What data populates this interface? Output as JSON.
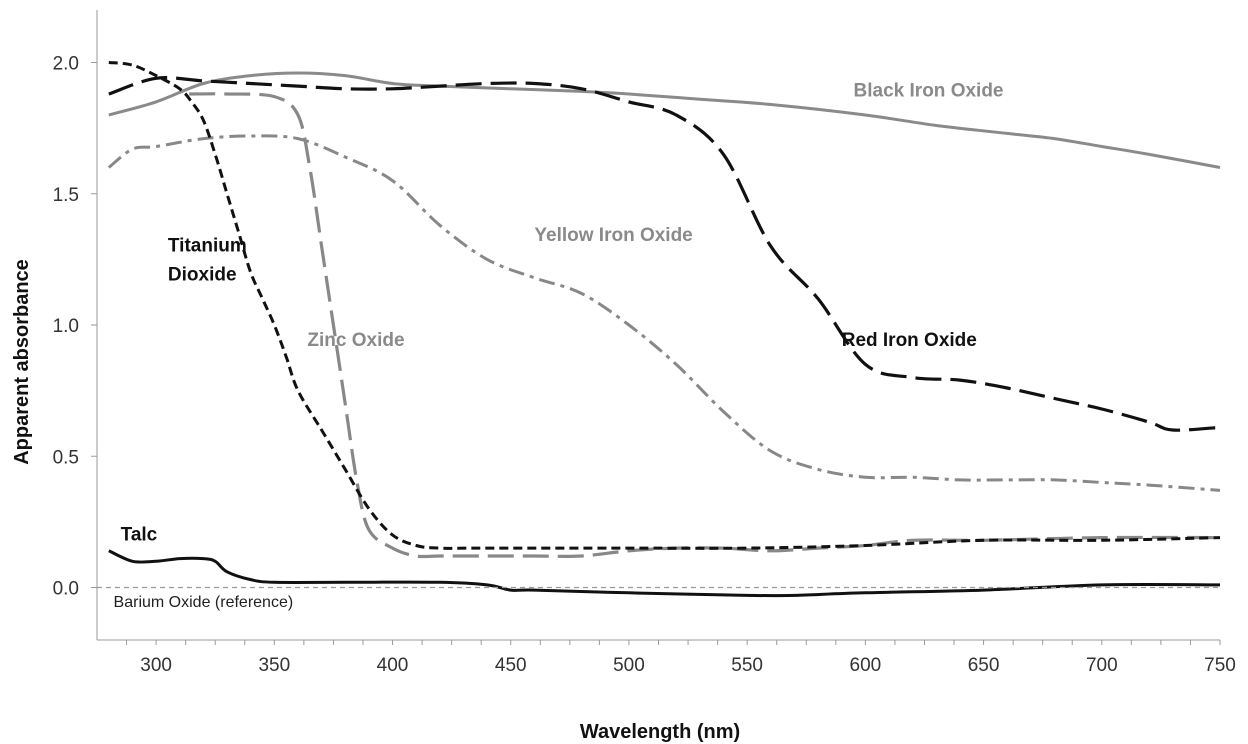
{
  "chart_data": {
    "type": "line",
    "xlabel": "Wavelength (nm)",
    "ylabel": "Apparent absorbance",
    "xlim": [
      275,
      750
    ],
    "ylim": [
      -0.2,
      2.2
    ],
    "xticks": [
      {
        "value": 300,
        "label": "300"
      },
      {
        "value": 350,
        "label": "350"
      },
      {
        "value": 400,
        "label": "400"
      },
      {
        "value": 450,
        "label": "450"
      },
      {
        "value": 500,
        "label": "500"
      },
      {
        "value": 550,
        "label": "550"
      },
      {
        "value": 600,
        "label": "600"
      },
      {
        "value": 650,
        "label": "650"
      },
      {
        "value": 700,
        "label": "700"
      },
      {
        "value": 750,
        "label": "750"
      }
    ],
    "yticks": [
      {
        "value": 0.0,
        "label": "0.0"
      },
      {
        "value": 0.5,
        "label": "0.5"
      },
      {
        "value": 1.0,
        "label": "1.0"
      },
      {
        "value": 1.5,
        "label": "1.5"
      },
      {
        "value": 2.0,
        "label": "2.0"
      }
    ],
    "grid": false,
    "legend": "none",
    "series": [
      {
        "name": "Black Iron Oxide",
        "color": "#8a8a8a",
        "dash": "solid",
        "label_anchor": [
          595,
          1.87
        ],
        "x": [
          280,
          300,
          320,
          340,
          360,
          380,
          400,
          420,
          450,
          480,
          500,
          530,
          560,
          600,
          630,
          660,
          680,
          700,
          720,
          750
        ],
        "y": [
          1.8,
          1.85,
          1.92,
          1.95,
          1.96,
          1.95,
          1.92,
          1.91,
          1.9,
          1.89,
          1.88,
          1.86,
          1.84,
          1.8,
          1.76,
          1.73,
          1.71,
          1.68,
          1.65,
          1.6
        ]
      },
      {
        "name": "Red Iron Oxide",
        "color": "#111111",
        "dash": "long",
        "label_anchor": [
          590,
          0.92
        ],
        "x": [
          280,
          300,
          320,
          340,
          360,
          380,
          400,
          420,
          440,
          460,
          480,
          500,
          520,
          540,
          560,
          580,
          600,
          620,
          640,
          660,
          680,
          700,
          720,
          730,
          750
        ],
        "y": [
          1.88,
          1.94,
          1.93,
          1.92,
          1.91,
          1.9,
          1.9,
          1.91,
          1.92,
          1.92,
          1.9,
          1.85,
          1.8,
          1.65,
          1.3,
          1.1,
          0.85,
          0.8,
          0.79,
          0.76,
          0.72,
          0.68,
          0.63,
          0.6,
          0.61
        ]
      },
      {
        "name": "Yellow Iron Oxide",
        "color": "#888888",
        "dash": "dashdot",
        "label_anchor": [
          460,
          1.32
        ],
        "x": [
          280,
          290,
          300,
          320,
          340,
          360,
          380,
          400,
          420,
          440,
          460,
          480,
          500,
          520,
          540,
          560,
          580,
          600,
          620,
          640,
          660,
          680,
          700,
          720,
          750
        ],
        "y": [
          1.6,
          1.67,
          1.68,
          1.71,
          1.72,
          1.71,
          1.64,
          1.55,
          1.38,
          1.25,
          1.18,
          1.12,
          1.0,
          0.85,
          0.67,
          0.52,
          0.45,
          0.42,
          0.42,
          0.41,
          0.41,
          0.41,
          0.4,
          0.39,
          0.37
        ]
      },
      {
        "name": "Zinc Oxide",
        "color": "#888888",
        "dash": "long",
        "label_anchor": [
          364,
          0.92
        ],
        "x": [
          314,
          330,
          350,
          360,
          365,
          370,
          375,
          380,
          385,
          390,
          400,
          410,
          420,
          440,
          460,
          480,
          500,
          520,
          540,
          560,
          580,
          600,
          620,
          650,
          700,
          750
        ],
        "y": [
          1.88,
          1.88,
          1.87,
          1.8,
          1.6,
          1.3,
          1.0,
          0.7,
          0.4,
          0.22,
          0.15,
          0.12,
          0.12,
          0.12,
          0.12,
          0.12,
          0.14,
          0.15,
          0.15,
          0.14,
          0.15,
          0.16,
          0.18,
          0.18,
          0.19,
          0.19
        ]
      },
      {
        "name": "Titanium Dioxide",
        "color": "#111111",
        "dash": "short",
        "label_anchor": [
          305,
          1.28
        ],
        "x": [
          280,
          290,
          300,
          310,
          315,
          320,
          325,
          330,
          335,
          340,
          345,
          350,
          355,
          360,
          370,
          380,
          390,
          400,
          410,
          420,
          440,
          500,
          550,
          600,
          650,
          700,
          750
        ],
        "y": [
          2.0,
          1.99,
          1.95,
          1.9,
          1.85,
          1.78,
          1.65,
          1.5,
          1.35,
          1.2,
          1.1,
          1.0,
          0.88,
          0.75,
          0.6,
          0.45,
          0.3,
          0.2,
          0.16,
          0.15,
          0.15,
          0.15,
          0.15,
          0.16,
          0.18,
          0.18,
          0.19
        ]
      },
      {
        "name": "Talc",
        "color": "#111111",
        "dash": "solid",
        "label_anchor": [
          285,
          0.18
        ],
        "x": [
          280,
          290,
          300,
          310,
          320,
          325,
          330,
          340,
          350,
          380,
          420,
          440,
          450,
          460,
          500,
          550,
          570,
          600,
          650,
          700,
          750
        ],
        "y": [
          0.14,
          0.1,
          0.1,
          0.11,
          0.11,
          0.1,
          0.06,
          0.03,
          0.02,
          0.02,
          0.02,
          0.01,
          -0.01,
          -0.01,
          -0.02,
          -0.03,
          -0.03,
          -0.02,
          -0.01,
          0.01,
          0.01
        ]
      },
      {
        "name": "Barium Oxide (reference)",
        "color": "#999999",
        "dash": "fine",
        "label_anchor": [
          282,
          -0.075
        ],
        "x": [
          275,
          750
        ],
        "y": [
          0.0,
          0.0
        ]
      }
    ],
    "label_layout": {
      "Black Iron Oxide": {
        "color": "#8a8a8a",
        "lines": [
          "Black Iron Oxide"
        ],
        "bold": true
      },
      "Red Iron Oxide": {
        "color": "#111111",
        "lines": [
          "Red Iron Oxide"
        ],
        "bold": true
      },
      "Yellow Iron Oxide": {
        "color": "#8a8a8a",
        "lines": [
          "Yellow Iron Oxide"
        ],
        "bold": true
      },
      "Zinc Oxide": {
        "color": "#8a8a8a",
        "lines": [
          "Zinc Oxide"
        ],
        "bold": true
      },
      "Titanium Dioxide": {
        "color": "#111111",
        "lines": [
          "Titanium",
          "Dioxide"
        ],
        "bold": true
      },
      "Talc": {
        "color": "#111111",
        "lines": [
          "Talc"
        ],
        "bold": true
      },
      "Barium Oxide (reference)": {
        "color": "#222222",
        "lines": [
          "Barium Oxide (reference)"
        ],
        "bold": false
      }
    }
  }
}
